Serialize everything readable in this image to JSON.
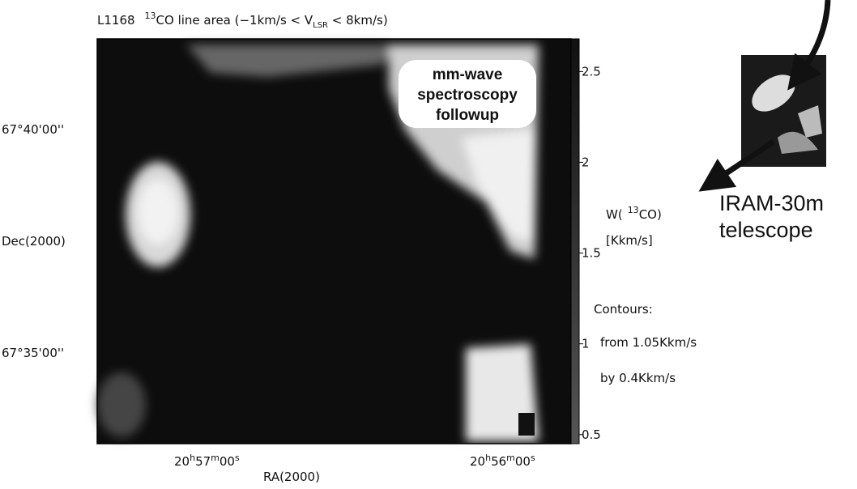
{
  "title": {
    "source": "L1168",
    "isotope": "13",
    "text": "CO line area (−1km/s < V",
    "subscript": "LSR",
    "end": " < 8km/s)"
  },
  "dec_axis": {
    "label": "Dec(2000)",
    "ticks": [
      "67°40'00''",
      "67°35'00''"
    ]
  },
  "ra_axis": {
    "label": "RA(2000)",
    "ticks": [
      [
        "20",
        "h",
        "57",
        "m",
        "00",
        "s"
      ],
      [
        "20",
        "h",
        "56",
        "m",
        "00",
        "s"
      ]
    ]
  },
  "colorbar": {
    "label": {
      "start": "W(",
      "isotope": "13",
      "species": "CO)",
      "unit": "[Kkm/s]"
    },
    "lim": [
      0.45,
      2.68
    ],
    "ticks": [
      0.5,
      1,
      1.5,
      2,
      2.5
    ]
  },
  "contours": {
    "heading": "Contours:",
    "from": "from 1.05Kkm/s",
    "step": "by 0.4Kkm/s"
  },
  "callout": [
    "mm-wave",
    "spectroscopy",
    "followup"
  ],
  "telescope": [
    "IRAM-30m",
    "telescope"
  ]
}
